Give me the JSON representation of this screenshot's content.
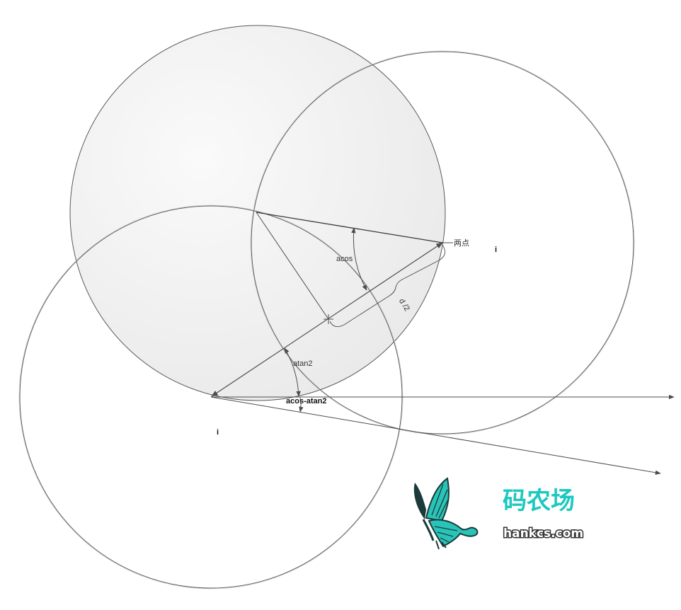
{
  "labels": {
    "two_points": "两点",
    "i_right": "i",
    "i_bottom": "i",
    "acos": "acos",
    "d_half": "d /2",
    "atan2": "atan2",
    "acos_minus_atan2": "acos-atan2"
  },
  "logo": {
    "name": "码农场",
    "url": "hankcs.com"
  },
  "colors": {
    "line": "#4d4d4d",
    "fill_circle": "#efefef",
    "accent": "#1cc8c0",
    "butterfly_teal": "#29c3b8",
    "butterfly_dark": "#1b3a3a"
  }
}
